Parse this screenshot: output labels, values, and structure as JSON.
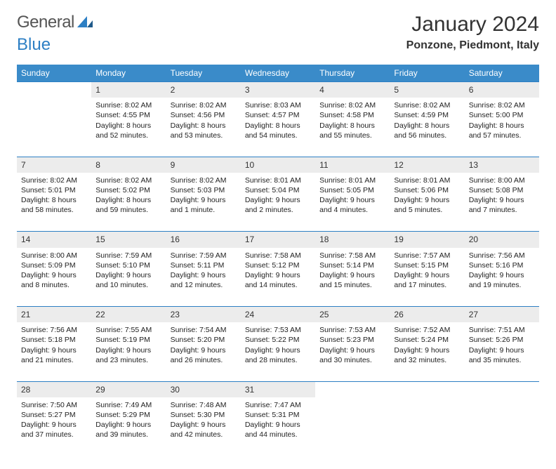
{
  "logo": {
    "part1": "General",
    "part2": "Blue"
  },
  "title": "January 2024",
  "location": "Ponzone, Piedmont, Italy",
  "header_bg": "#3a8bc9",
  "rule_color": "#2d7fc4",
  "daynum_bg": "#ececec",
  "day_headers": [
    "Sunday",
    "Monday",
    "Tuesday",
    "Wednesday",
    "Thursday",
    "Friday",
    "Saturday"
  ],
  "weeks": [
    [
      null,
      {
        "n": "1",
        "sr": "Sunrise: 8:02 AM",
        "ss": "Sunset: 4:55 PM",
        "d1": "Daylight: 8 hours",
        "d2": "and 52 minutes."
      },
      {
        "n": "2",
        "sr": "Sunrise: 8:02 AM",
        "ss": "Sunset: 4:56 PM",
        "d1": "Daylight: 8 hours",
        "d2": "and 53 minutes."
      },
      {
        "n": "3",
        "sr": "Sunrise: 8:03 AM",
        "ss": "Sunset: 4:57 PM",
        "d1": "Daylight: 8 hours",
        "d2": "and 54 minutes."
      },
      {
        "n": "4",
        "sr": "Sunrise: 8:02 AM",
        "ss": "Sunset: 4:58 PM",
        "d1": "Daylight: 8 hours",
        "d2": "and 55 minutes."
      },
      {
        "n": "5",
        "sr": "Sunrise: 8:02 AM",
        "ss": "Sunset: 4:59 PM",
        "d1": "Daylight: 8 hours",
        "d2": "and 56 minutes."
      },
      {
        "n": "6",
        "sr": "Sunrise: 8:02 AM",
        "ss": "Sunset: 5:00 PM",
        "d1": "Daylight: 8 hours",
        "d2": "and 57 minutes."
      }
    ],
    [
      {
        "n": "7",
        "sr": "Sunrise: 8:02 AM",
        "ss": "Sunset: 5:01 PM",
        "d1": "Daylight: 8 hours",
        "d2": "and 58 minutes."
      },
      {
        "n": "8",
        "sr": "Sunrise: 8:02 AM",
        "ss": "Sunset: 5:02 PM",
        "d1": "Daylight: 8 hours",
        "d2": "and 59 minutes."
      },
      {
        "n": "9",
        "sr": "Sunrise: 8:02 AM",
        "ss": "Sunset: 5:03 PM",
        "d1": "Daylight: 9 hours",
        "d2": "and 1 minute."
      },
      {
        "n": "10",
        "sr": "Sunrise: 8:01 AM",
        "ss": "Sunset: 5:04 PM",
        "d1": "Daylight: 9 hours",
        "d2": "and 2 minutes."
      },
      {
        "n": "11",
        "sr": "Sunrise: 8:01 AM",
        "ss": "Sunset: 5:05 PM",
        "d1": "Daylight: 9 hours",
        "d2": "and 4 minutes."
      },
      {
        "n": "12",
        "sr": "Sunrise: 8:01 AM",
        "ss": "Sunset: 5:06 PM",
        "d1": "Daylight: 9 hours",
        "d2": "and 5 minutes."
      },
      {
        "n": "13",
        "sr": "Sunrise: 8:00 AM",
        "ss": "Sunset: 5:08 PM",
        "d1": "Daylight: 9 hours",
        "d2": "and 7 minutes."
      }
    ],
    [
      {
        "n": "14",
        "sr": "Sunrise: 8:00 AM",
        "ss": "Sunset: 5:09 PM",
        "d1": "Daylight: 9 hours",
        "d2": "and 8 minutes."
      },
      {
        "n": "15",
        "sr": "Sunrise: 7:59 AM",
        "ss": "Sunset: 5:10 PM",
        "d1": "Daylight: 9 hours",
        "d2": "and 10 minutes."
      },
      {
        "n": "16",
        "sr": "Sunrise: 7:59 AM",
        "ss": "Sunset: 5:11 PM",
        "d1": "Daylight: 9 hours",
        "d2": "and 12 minutes."
      },
      {
        "n": "17",
        "sr": "Sunrise: 7:58 AM",
        "ss": "Sunset: 5:12 PM",
        "d1": "Daylight: 9 hours",
        "d2": "and 14 minutes."
      },
      {
        "n": "18",
        "sr": "Sunrise: 7:58 AM",
        "ss": "Sunset: 5:14 PM",
        "d1": "Daylight: 9 hours",
        "d2": "and 15 minutes."
      },
      {
        "n": "19",
        "sr": "Sunrise: 7:57 AM",
        "ss": "Sunset: 5:15 PM",
        "d1": "Daylight: 9 hours",
        "d2": "and 17 minutes."
      },
      {
        "n": "20",
        "sr": "Sunrise: 7:56 AM",
        "ss": "Sunset: 5:16 PM",
        "d1": "Daylight: 9 hours",
        "d2": "and 19 minutes."
      }
    ],
    [
      {
        "n": "21",
        "sr": "Sunrise: 7:56 AM",
        "ss": "Sunset: 5:18 PM",
        "d1": "Daylight: 9 hours",
        "d2": "and 21 minutes."
      },
      {
        "n": "22",
        "sr": "Sunrise: 7:55 AM",
        "ss": "Sunset: 5:19 PM",
        "d1": "Daylight: 9 hours",
        "d2": "and 23 minutes."
      },
      {
        "n": "23",
        "sr": "Sunrise: 7:54 AM",
        "ss": "Sunset: 5:20 PM",
        "d1": "Daylight: 9 hours",
        "d2": "and 26 minutes."
      },
      {
        "n": "24",
        "sr": "Sunrise: 7:53 AM",
        "ss": "Sunset: 5:22 PM",
        "d1": "Daylight: 9 hours",
        "d2": "and 28 minutes."
      },
      {
        "n": "25",
        "sr": "Sunrise: 7:53 AM",
        "ss": "Sunset: 5:23 PM",
        "d1": "Daylight: 9 hours",
        "d2": "and 30 minutes."
      },
      {
        "n": "26",
        "sr": "Sunrise: 7:52 AM",
        "ss": "Sunset: 5:24 PM",
        "d1": "Daylight: 9 hours",
        "d2": "and 32 minutes."
      },
      {
        "n": "27",
        "sr": "Sunrise: 7:51 AM",
        "ss": "Sunset: 5:26 PM",
        "d1": "Daylight: 9 hours",
        "d2": "and 35 minutes."
      }
    ],
    [
      {
        "n": "28",
        "sr": "Sunrise: 7:50 AM",
        "ss": "Sunset: 5:27 PM",
        "d1": "Daylight: 9 hours",
        "d2": "and 37 minutes."
      },
      {
        "n": "29",
        "sr": "Sunrise: 7:49 AM",
        "ss": "Sunset: 5:29 PM",
        "d1": "Daylight: 9 hours",
        "d2": "and 39 minutes."
      },
      {
        "n": "30",
        "sr": "Sunrise: 7:48 AM",
        "ss": "Sunset: 5:30 PM",
        "d1": "Daylight: 9 hours",
        "d2": "and 42 minutes."
      },
      {
        "n": "31",
        "sr": "Sunrise: 7:47 AM",
        "ss": "Sunset: 5:31 PM",
        "d1": "Daylight: 9 hours",
        "d2": "and 44 minutes."
      },
      null,
      null,
      null
    ]
  ]
}
